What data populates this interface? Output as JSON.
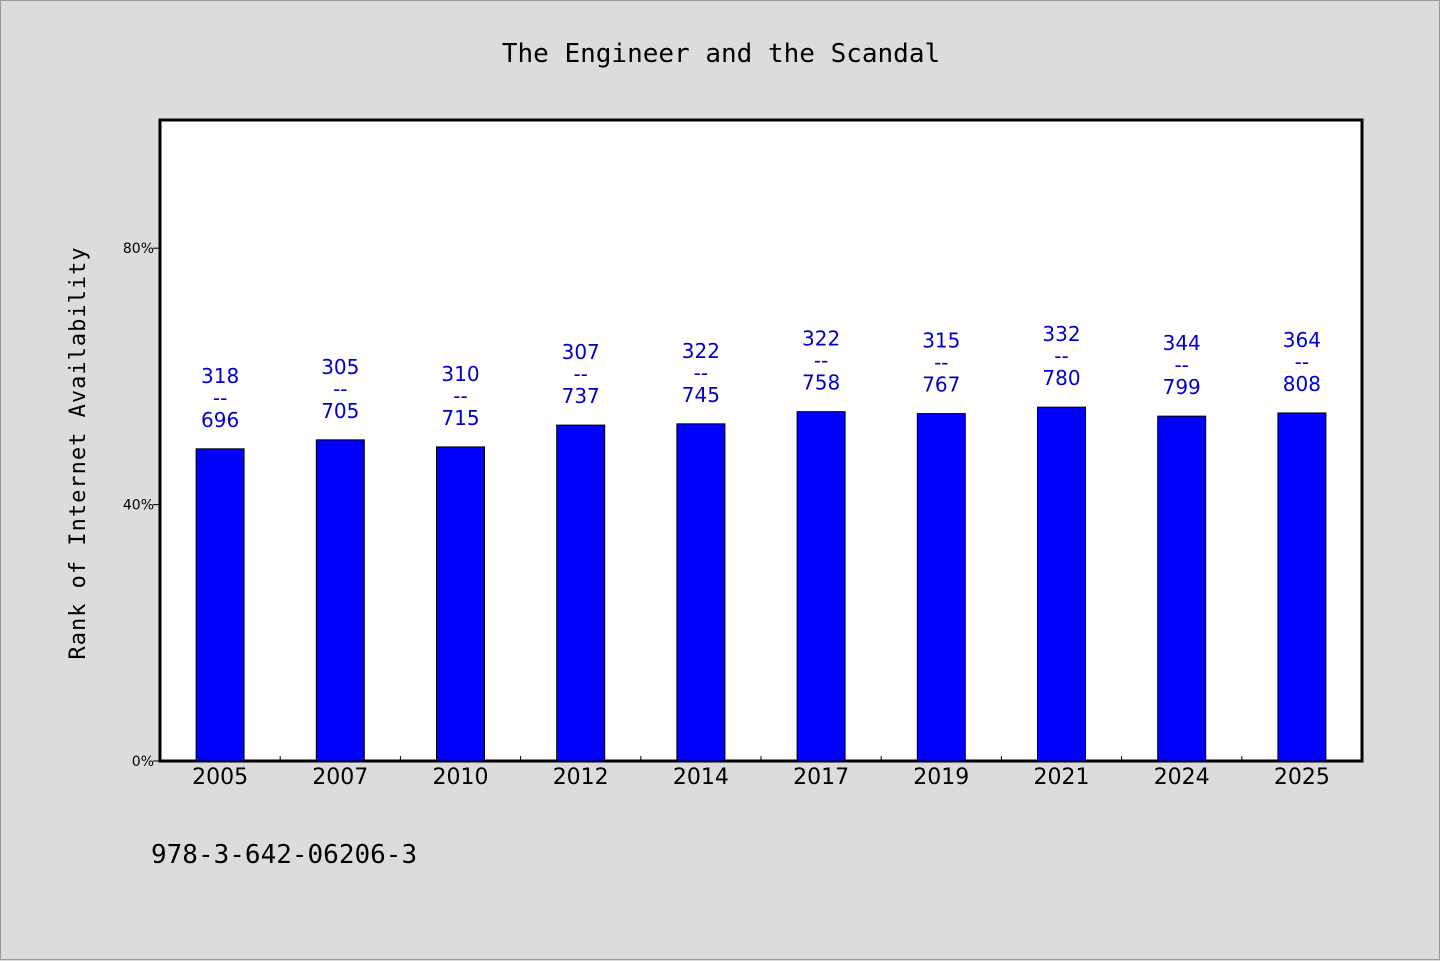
{
  "chart_data": {
    "type": "bar",
    "title": "The Engineer and the Scandal",
    "xlabel": "",
    "ylabel": "Rank of Internet Availability",
    "ylim": [
      0,
      100
    ],
    "y_ticks": [
      {
        "value": 0,
        "label": "0%"
      },
      {
        "value": 40,
        "label": "40%"
      },
      {
        "value": 80,
        "label": "80%"
      }
    ],
    "categories": [
      "2005",
      "2007",
      "2010",
      "2012",
      "2014",
      "2017",
      "2019",
      "2021",
      "2024",
      "2025"
    ],
    "values": [
      48.7,
      50.1,
      49.0,
      52.4,
      52.6,
      54.5,
      54.2,
      55.2,
      53.8,
      54.3
    ],
    "labels": [
      [
        "318",
        "--",
        "696"
      ],
      [
        "305",
        "--",
        "705"
      ],
      [
        "310",
        "--",
        "715"
      ],
      [
        "307",
        "--",
        "737"
      ],
      [
        "322",
        "--",
        "745"
      ],
      [
        "322",
        "--",
        "758"
      ],
      [
        "315",
        "--",
        "767"
      ],
      [
        "332",
        "--",
        "780"
      ],
      [
        "344",
        "--",
        "799"
      ],
      [
        "364",
        "--",
        "808"
      ]
    ],
    "bar_color": "#0000ff",
    "label_color": "#0000cc",
    "grid": false,
    "legend": "none"
  },
  "footer": {
    "isbn": "978-3-642-06206-3"
  }
}
